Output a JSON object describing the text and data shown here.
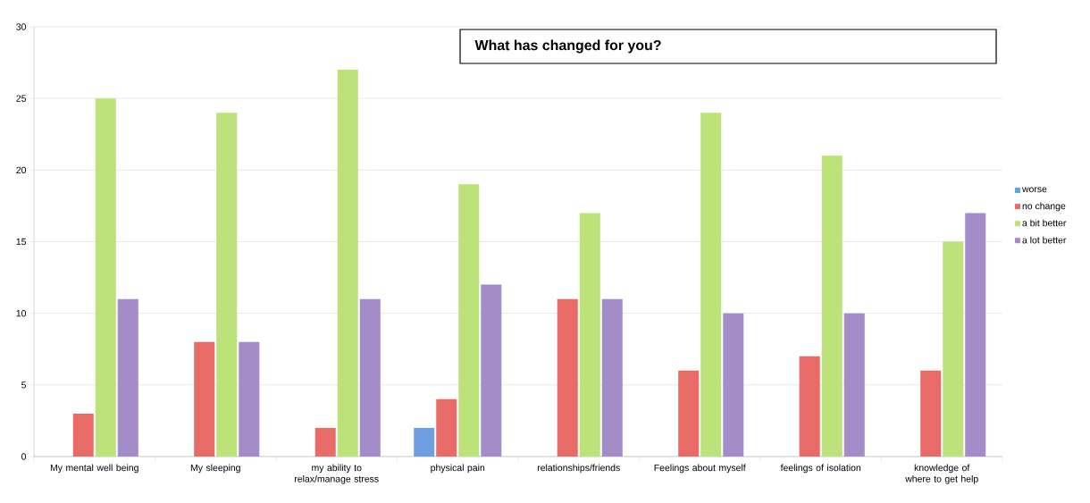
{
  "chart_data": {
    "type": "bar",
    "title": "What has changed for you?",
    "categories": [
      "My mental well being",
      "My sleeping",
      "my ability to relax/manage stress",
      "physical pain",
      "relationships/friends",
      "Feelings about myself",
      "feelings of isolation",
      "knowledge of where to get help"
    ],
    "series": [
      {
        "name": "worse",
        "color": "#6f9fe0",
        "values": [
          null,
          null,
          null,
          2,
          null,
          null,
          null,
          null
        ]
      },
      {
        "name": "no change",
        "color": "#e96b68",
        "values": [
          3,
          8,
          2,
          4,
          11,
          6,
          7,
          6
        ]
      },
      {
        "name": "a bit better",
        "color": "#bde27a",
        "values": [
          25,
          24,
          27,
          19,
          17,
          24,
          21,
          15
        ]
      },
      {
        "name": "a lot better",
        "color": "#a48cc9",
        "values": [
          11,
          8,
          11,
          12,
          11,
          10,
          10,
          17
        ]
      }
    ],
    "ylim": [
      0,
      30
    ],
    "yticks": [
      0,
      5,
      10,
      15,
      20,
      25,
      30
    ],
    "grid": "y",
    "legend": "right"
  }
}
